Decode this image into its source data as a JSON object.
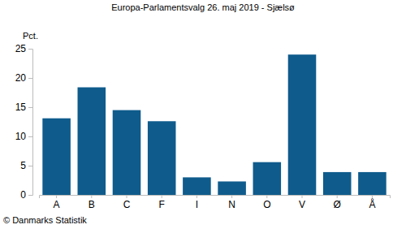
{
  "chart_data": {
    "type": "bar",
    "title": "Europa-Parlamentsvalg 26. maj 2019 - Sjælsø",
    "y_label": "Pct.",
    "source": "© Danmarks Statistik",
    "categories": [
      "A",
      "B",
      "C",
      "F",
      "I",
      "N",
      "O",
      "V",
      "Ø",
      "Å"
    ],
    "values": [
      13.1,
      18.4,
      14.5,
      12.6,
      3.0,
      2.3,
      5.6,
      24.0,
      3.9,
      3.9
    ],
    "color": "#0f5b8c",
    "ylim": [
      0,
      25
    ],
    "yticks": [
      0,
      5,
      10,
      15,
      20,
      25
    ],
    "grid": false
  }
}
